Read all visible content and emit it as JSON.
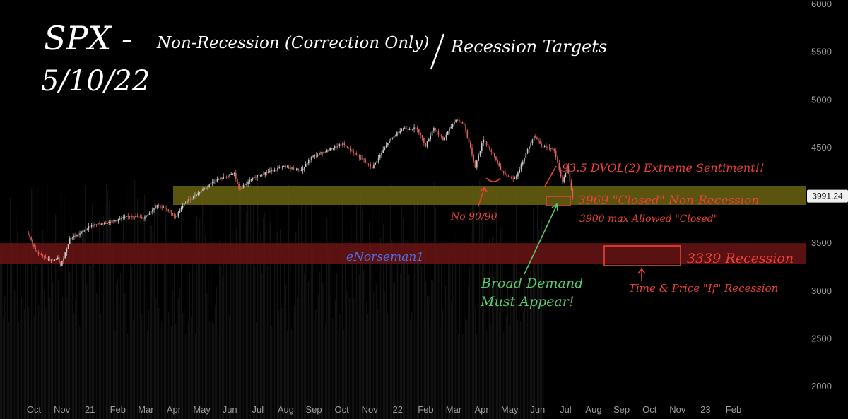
{
  "chart_data": {
    "type": "line",
    "title": "SPX -",
    "title_parts": [
      "Non-Recession (Correction Only)",
      "Recession Targets"
    ],
    "date_label": "5/10/22",
    "x_ticks": [
      "Oct",
      "Nov",
      "21",
      "Feb",
      "Mar",
      "Apr",
      "May",
      "Jun",
      "Jul",
      "Aug",
      "Sep",
      "Oct",
      "Nov",
      "22",
      "Feb",
      "Mar",
      "Apr",
      "May",
      "Jun",
      "Jul",
      "Aug",
      "Sep",
      "Oct",
      "Nov",
      "23",
      "Feb"
    ],
    "y_ticks": [
      6000,
      5500,
      5000,
      4500,
      4000,
      3500,
      3000,
      2500,
      2000
    ],
    "ylim": [
      1900,
      6000
    ],
    "last_price": "3991.24",
    "series": [
      {
        "values": [
          [
            "2020-09-25",
            3600
          ],
          [
            "2020-10-01",
            3460
          ],
          [
            "2020-10-06",
            3400
          ],
          [
            "2020-10-12",
            3350
          ],
          [
            "2020-10-20",
            3310
          ],
          [
            "2020-10-27",
            3340
          ],
          [
            "2020-10-30",
            3260
          ],
          [
            "2020-11-04",
            3400
          ],
          [
            "2020-11-09",
            3550
          ],
          [
            "2020-11-20",
            3600
          ],
          [
            "2020-12-01",
            3680
          ],
          [
            "2020-12-15",
            3710
          ],
          [
            "2020-12-30",
            3740
          ],
          [
            "2021-01-15",
            3790
          ],
          [
            "2021-01-28",
            3760
          ],
          [
            "2021-02-12",
            3900
          ],
          [
            "2021-02-26",
            3830
          ],
          [
            "2021-03-04",
            3770
          ],
          [
            "2021-03-15",
            3930
          ],
          [
            "2021-04-01",
            4050
          ],
          [
            "2021-04-15",
            4150
          ],
          [
            "2021-05-07",
            4230
          ],
          [
            "2021-05-12",
            4060
          ],
          [
            "2021-06-01",
            4210
          ],
          [
            "2021-06-30",
            4300
          ],
          [
            "2021-07-19",
            4260
          ],
          [
            "2021-07-30",
            4400
          ],
          [
            "2021-08-31",
            4530
          ],
          [
            "2021-09-02",
            4540
          ],
          [
            "2021-09-30",
            4320
          ],
          [
            "2021-10-04",
            4290
          ],
          [
            "2021-10-21",
            4550
          ],
          [
            "2021-11-05",
            4700
          ],
          [
            "2021-11-22",
            4700
          ],
          [
            "2021-12-01",
            4520
          ],
          [
            "2021-12-10",
            4710
          ],
          [
            "2021-12-20",
            4580
          ],
          [
            "2022-01-03",
            4800
          ],
          [
            "2022-01-12",
            4740
          ],
          [
            "2022-01-24",
            4300
          ],
          [
            "2022-02-02",
            4590
          ],
          [
            "2022-02-14",
            4400
          ],
          [
            "2022-02-24",
            4220
          ],
          [
            "2022-03-08",
            4170
          ],
          [
            "2022-03-29",
            4630
          ],
          [
            "2022-04-06",
            4520
          ],
          [
            "2022-04-20",
            4470
          ],
          [
            "2022-04-29",
            4130
          ],
          [
            "2022-05-04",
            4300
          ],
          [
            "2022-05-10",
            3991
          ]
        ]
      }
    ],
    "zones": [
      {
        "name": "non-recession",
        "from": 3900,
        "to": 4100,
        "color": "#6b6310"
      },
      {
        "name": "recession",
        "from": 3280,
        "to": 3500,
        "color": "#6a1414"
      }
    ],
    "annotations": {
      "dvol": "93.5 DVOL(2) Extreme Sentiment!!",
      "closed_target": "3969 \"Closed\" Non-Recession",
      "max_allowed": "3900 max Allowed \"Closed\"",
      "no_9090": "No 90/90",
      "recession_target": "3339 Recession",
      "time_price": "Time & Price \"If\" Recession",
      "broad_demand_1": "Broad Demand",
      "broad_demand_2": "Must Appear!",
      "signature": "eNorseman1"
    },
    "colors": {
      "background": "#000000",
      "annotation_red": "#e8423a",
      "annotation_green": "#58c86b",
      "annotation_blue": "#4f6ee8",
      "title_white": "#ffffff",
      "candle_up": "#c8c8c8",
      "candle_down": "#e0605a"
    }
  }
}
